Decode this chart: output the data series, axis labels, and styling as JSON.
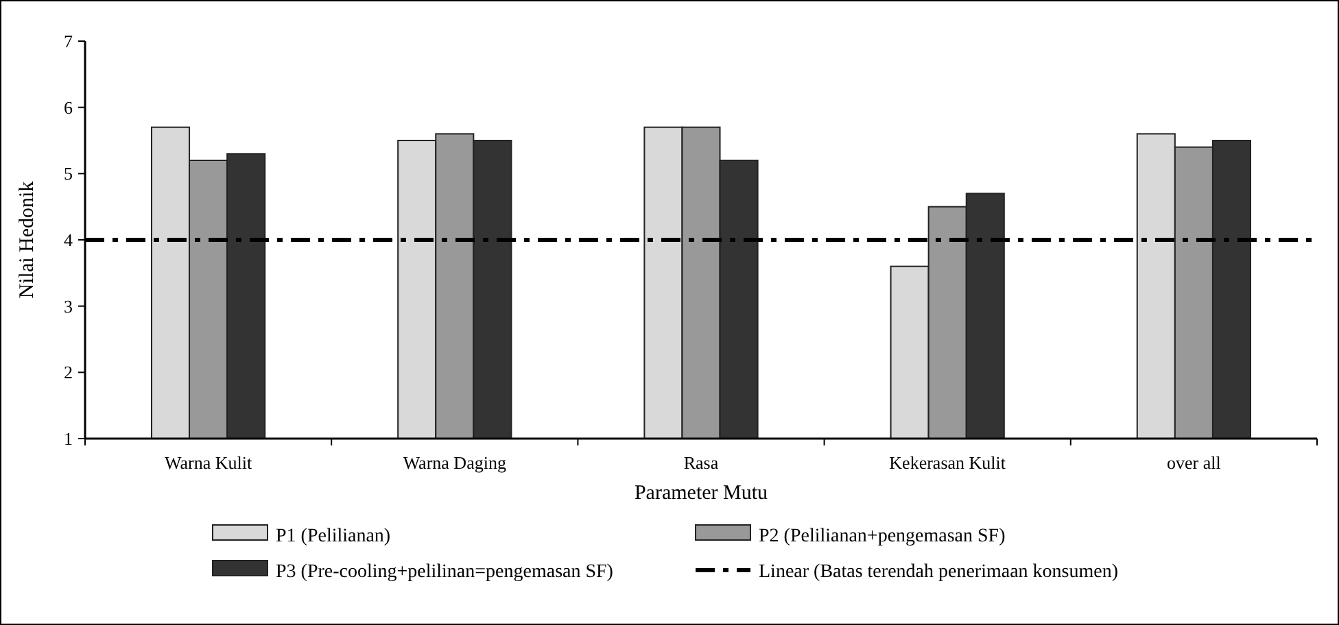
{
  "chart_data": {
    "type": "bar",
    "xlabel": "Parameter Mutu",
    "ylabel": "Nilai Hedonik",
    "categories": [
      "Warna Kulit",
      "Warna Daging",
      "Rasa",
      "Kekerasan Kulit",
      "over all"
    ],
    "series": [
      {
        "name": "P1 (Pelilianan)",
        "color": "#d9d9d9",
        "values": [
          5.7,
          5.5,
          5.7,
          3.6,
          5.6
        ]
      },
      {
        "name": "P2 (Pelilianan+pengemasan SF)",
        "color": "#999999",
        "values": [
          5.2,
          5.6,
          5.7,
          4.5,
          5.4
        ]
      },
      {
        "name": "P3 (Pre-cooling+pelilinan=pengemasan SF)",
        "color": "#333333",
        "values": [
          5.3,
          5.5,
          5.2,
          4.7,
          5.5
        ]
      }
    ],
    "ylim": [
      1,
      7
    ],
    "yticks": [
      1,
      2,
      3,
      4,
      5,
      6,
      7
    ],
    "grid": false,
    "legend": "bottom",
    "ref_lines": [
      {
        "axis": "y",
        "value": 4,
        "label": "Linear (Batas terendah penerimaan konsumen)",
        "color": "#000000",
        "line_style": "dashdot"
      }
    ]
  }
}
